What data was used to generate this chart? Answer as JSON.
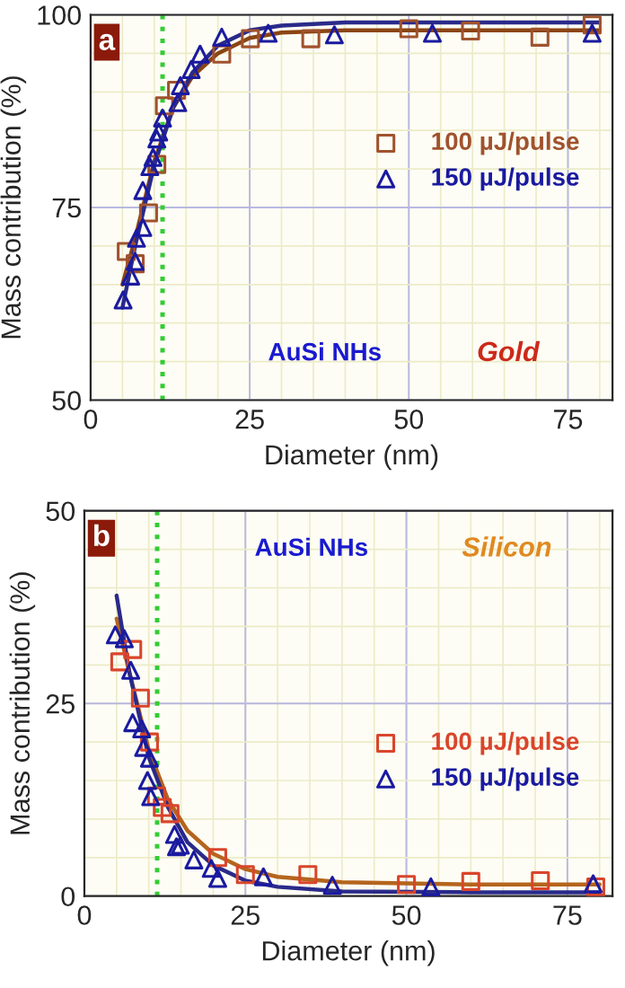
{
  "chart_data": [
    {
      "type": "scatter",
      "xlabel": "Diameter (nm)",
      "ylabel": "Mass contribution (%)",
      "xlim": [
        0,
        82
      ],
      "ylim": [
        50,
        100
      ],
      "xticks": [
        0,
        25,
        50,
        75
      ],
      "yticks": [
        50,
        75,
        100
      ],
      "grid": true,
      "legend": "right",
      "annotations": [
        "a",
        "AuSi NHs",
        "Gold"
      ],
      "ref_lines": [
        {
          "axis": "x",
          "value": 11.3,
          "color": "#33cc33",
          "line_style": "dotted"
        }
      ],
      "series": [
        {
          "name": "100 µJ/pulse",
          "marker": "square",
          "color": "#a0522d",
          "x": [
            5.6,
            7,
            9.1,
            10.4,
            11.6,
            13.5,
            20.6,
            25.1,
            34.6,
            50,
            59.7,
            70.6,
            78.8
          ],
          "values": [
            69.3,
            67.7,
            74.3,
            80.6,
            88.2,
            90.2,
            94.9,
            96.9,
            96.9,
            98.2,
            97.9,
            97.1,
            98.7
          ]
        },
        {
          "name": "150 µJ/pulse",
          "marker": "triangle",
          "color": "#1a1aa0",
          "x": [
            5.1,
            6.3,
            7,
            7.2,
            8.2,
            8.2,
            9.3,
            9.8,
            10.4,
            10.7,
            11.3,
            13.7,
            14.1,
            15.8,
            17.2,
            20.6,
            27.9,
            38.3,
            53.7,
            78.8
          ],
          "values": [
            63,
            66.1,
            68,
            71,
            72.4,
            77.2,
            80.3,
            81.5,
            83.9,
            84.8,
            86.6,
            88.6,
            90.8,
            92.9,
            94.9,
            97.1,
            97.6,
            97.4,
            97.6,
            97.6
          ]
        },
        {
          "type": "line",
          "color": "#8b4513",
          "x": [
            5,
            7,
            10,
            13,
            16,
            20,
            25,
            30,
            40,
            60,
            80
          ],
          "values": [
            65,
            71,
            81,
            88,
            92,
            95,
            97,
            97.7,
            98,
            98,
            98
          ]
        },
        {
          "type": "line",
          "color": "#2a2a8a",
          "x": [
            5,
            7,
            10,
            13,
            16,
            20,
            25,
            30,
            40,
            60,
            80
          ],
          "values": [
            62,
            70,
            80.5,
            88,
            92.5,
            96,
            98,
            98.6,
            99,
            99,
            99
          ]
        }
      ]
    },
    {
      "type": "scatter",
      "xlabel": "Diameter (nm)",
      "ylabel": "Mass contribution (%)",
      "xlim": [
        0,
        82
      ],
      "ylim": [
        0,
        50
      ],
      "xticks": [
        0,
        25,
        50,
        75
      ],
      "yticks": [
        0,
        25,
        50
      ],
      "grid": true,
      "legend": "right",
      "annotations": [
        "b",
        "AuSi NHs",
        "Silicon"
      ],
      "ref_lines": [
        {
          "axis": "x",
          "value": 11.3,
          "color": "#33cc33",
          "line_style": "dotted"
        }
      ],
      "series": [
        {
          "name": "100 µJ/pulse",
          "marker": "square",
          "color": "#d9452b",
          "x": [
            5.5,
            7.5,
            8.7,
            10.1,
            11.2,
            12.1,
            13.3,
            20.7,
            25,
            34.7,
            50,
            60,
            70.8,
            79.4
          ],
          "values": [
            30.4,
            32,
            25.7,
            20,
            13,
            11.5,
            10.7,
            5,
            2.8,
            2.8,
            1.5,
            1.9,
            2,
            1.2
          ]
        },
        {
          "name": "150 µJ/pulse",
          "marker": "triangle",
          "color": "#1a1aa0",
          "x": [
            4.8,
            6.2,
            7.2,
            7.5,
            8.9,
            9.2,
            9.8,
            10.3,
            10.1,
            14,
            14.3,
            14.9,
            17,
            19.7,
            20.7,
            27.8,
            38.5,
            53.8,
            79
          ],
          "values": [
            33.9,
            33.4,
            29.3,
            22.5,
            21.7,
            19.3,
            15,
            12.9,
            17.9,
            8,
            6.4,
            6.6,
            4.7,
            3.6,
            2.3,
            2.5,
            1.4,
            1.2,
            1.6
          ]
        },
        {
          "type": "line",
          "color": "#b5651d",
          "x": [
            5,
            7,
            10,
            13,
            16,
            20,
            25,
            30,
            40,
            60,
            80
          ],
          "values": [
            36,
            29,
            19,
            12.5,
            8.5,
            5.5,
            3.5,
            2.5,
            1.8,
            1.5,
            1.5
          ]
        },
        {
          "type": "line",
          "color": "#2a2a8a",
          "x": [
            5,
            7,
            10,
            13,
            16,
            20,
            25,
            30,
            40,
            60,
            80
          ],
          "values": [
            39,
            29,
            18,
            11.5,
            7,
            4,
            2,
            1.2,
            0.6,
            0.5,
            0.5
          ]
        }
      ]
    }
  ]
}
